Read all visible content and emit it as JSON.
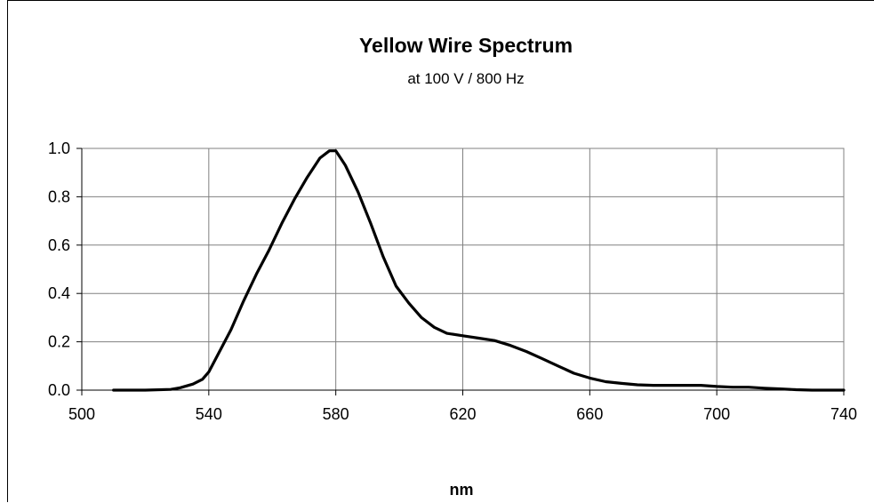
{
  "chart_data": {
    "type": "line",
    "title": "Yellow Wire Spectrum",
    "subtitle": "at 100 V /  800 Hz",
    "xlabel": "nm",
    "ylabel": "",
    "xlim": [
      500,
      740
    ],
    "ylim": [
      0,
      1.0
    ],
    "x_ticks": [
      "500",
      "540",
      "580",
      "620",
      "660",
      "700",
      "740"
    ],
    "y_ticks": [
      "0.0",
      "0.2",
      "0.4",
      "0.6",
      "0.8",
      "1.0"
    ],
    "grid": true,
    "legend": "none",
    "line_color": "#000000",
    "series": [
      {
        "x": [
          510,
          520,
          528,
          531,
          535,
          538,
          540,
          543,
          547,
          551,
          555,
          559,
          563,
          567,
          571,
          575,
          578,
          580,
          583,
          587,
          591,
          595,
          599,
          603,
          607,
          611,
          615,
          620,
          625,
          630,
          635,
          640,
          645,
          650,
          655,
          660,
          665,
          670,
          675,
          680,
          685,
          690,
          695,
          700,
          705,
          710,
          715,
          720,
          725,
          730,
          735,
          740
        ],
        "y": [
          0.0,
          0.0,
          0.003,
          0.01,
          0.025,
          0.045,
          0.075,
          0.15,
          0.25,
          0.37,
          0.48,
          0.58,
          0.69,
          0.79,
          0.88,
          0.96,
          0.99,
          0.99,
          0.93,
          0.82,
          0.69,
          0.55,
          0.43,
          0.36,
          0.3,
          0.26,
          0.235,
          0.225,
          0.215,
          0.205,
          0.185,
          0.16,
          0.13,
          0.1,
          0.07,
          0.05,
          0.035,
          0.028,
          0.022,
          0.02,
          0.02,
          0.02,
          0.02,
          0.015,
          0.012,
          0.012,
          0.008,
          0.005,
          0.002,
          0.0,
          0.0,
          0.0
        ]
      }
    ]
  }
}
